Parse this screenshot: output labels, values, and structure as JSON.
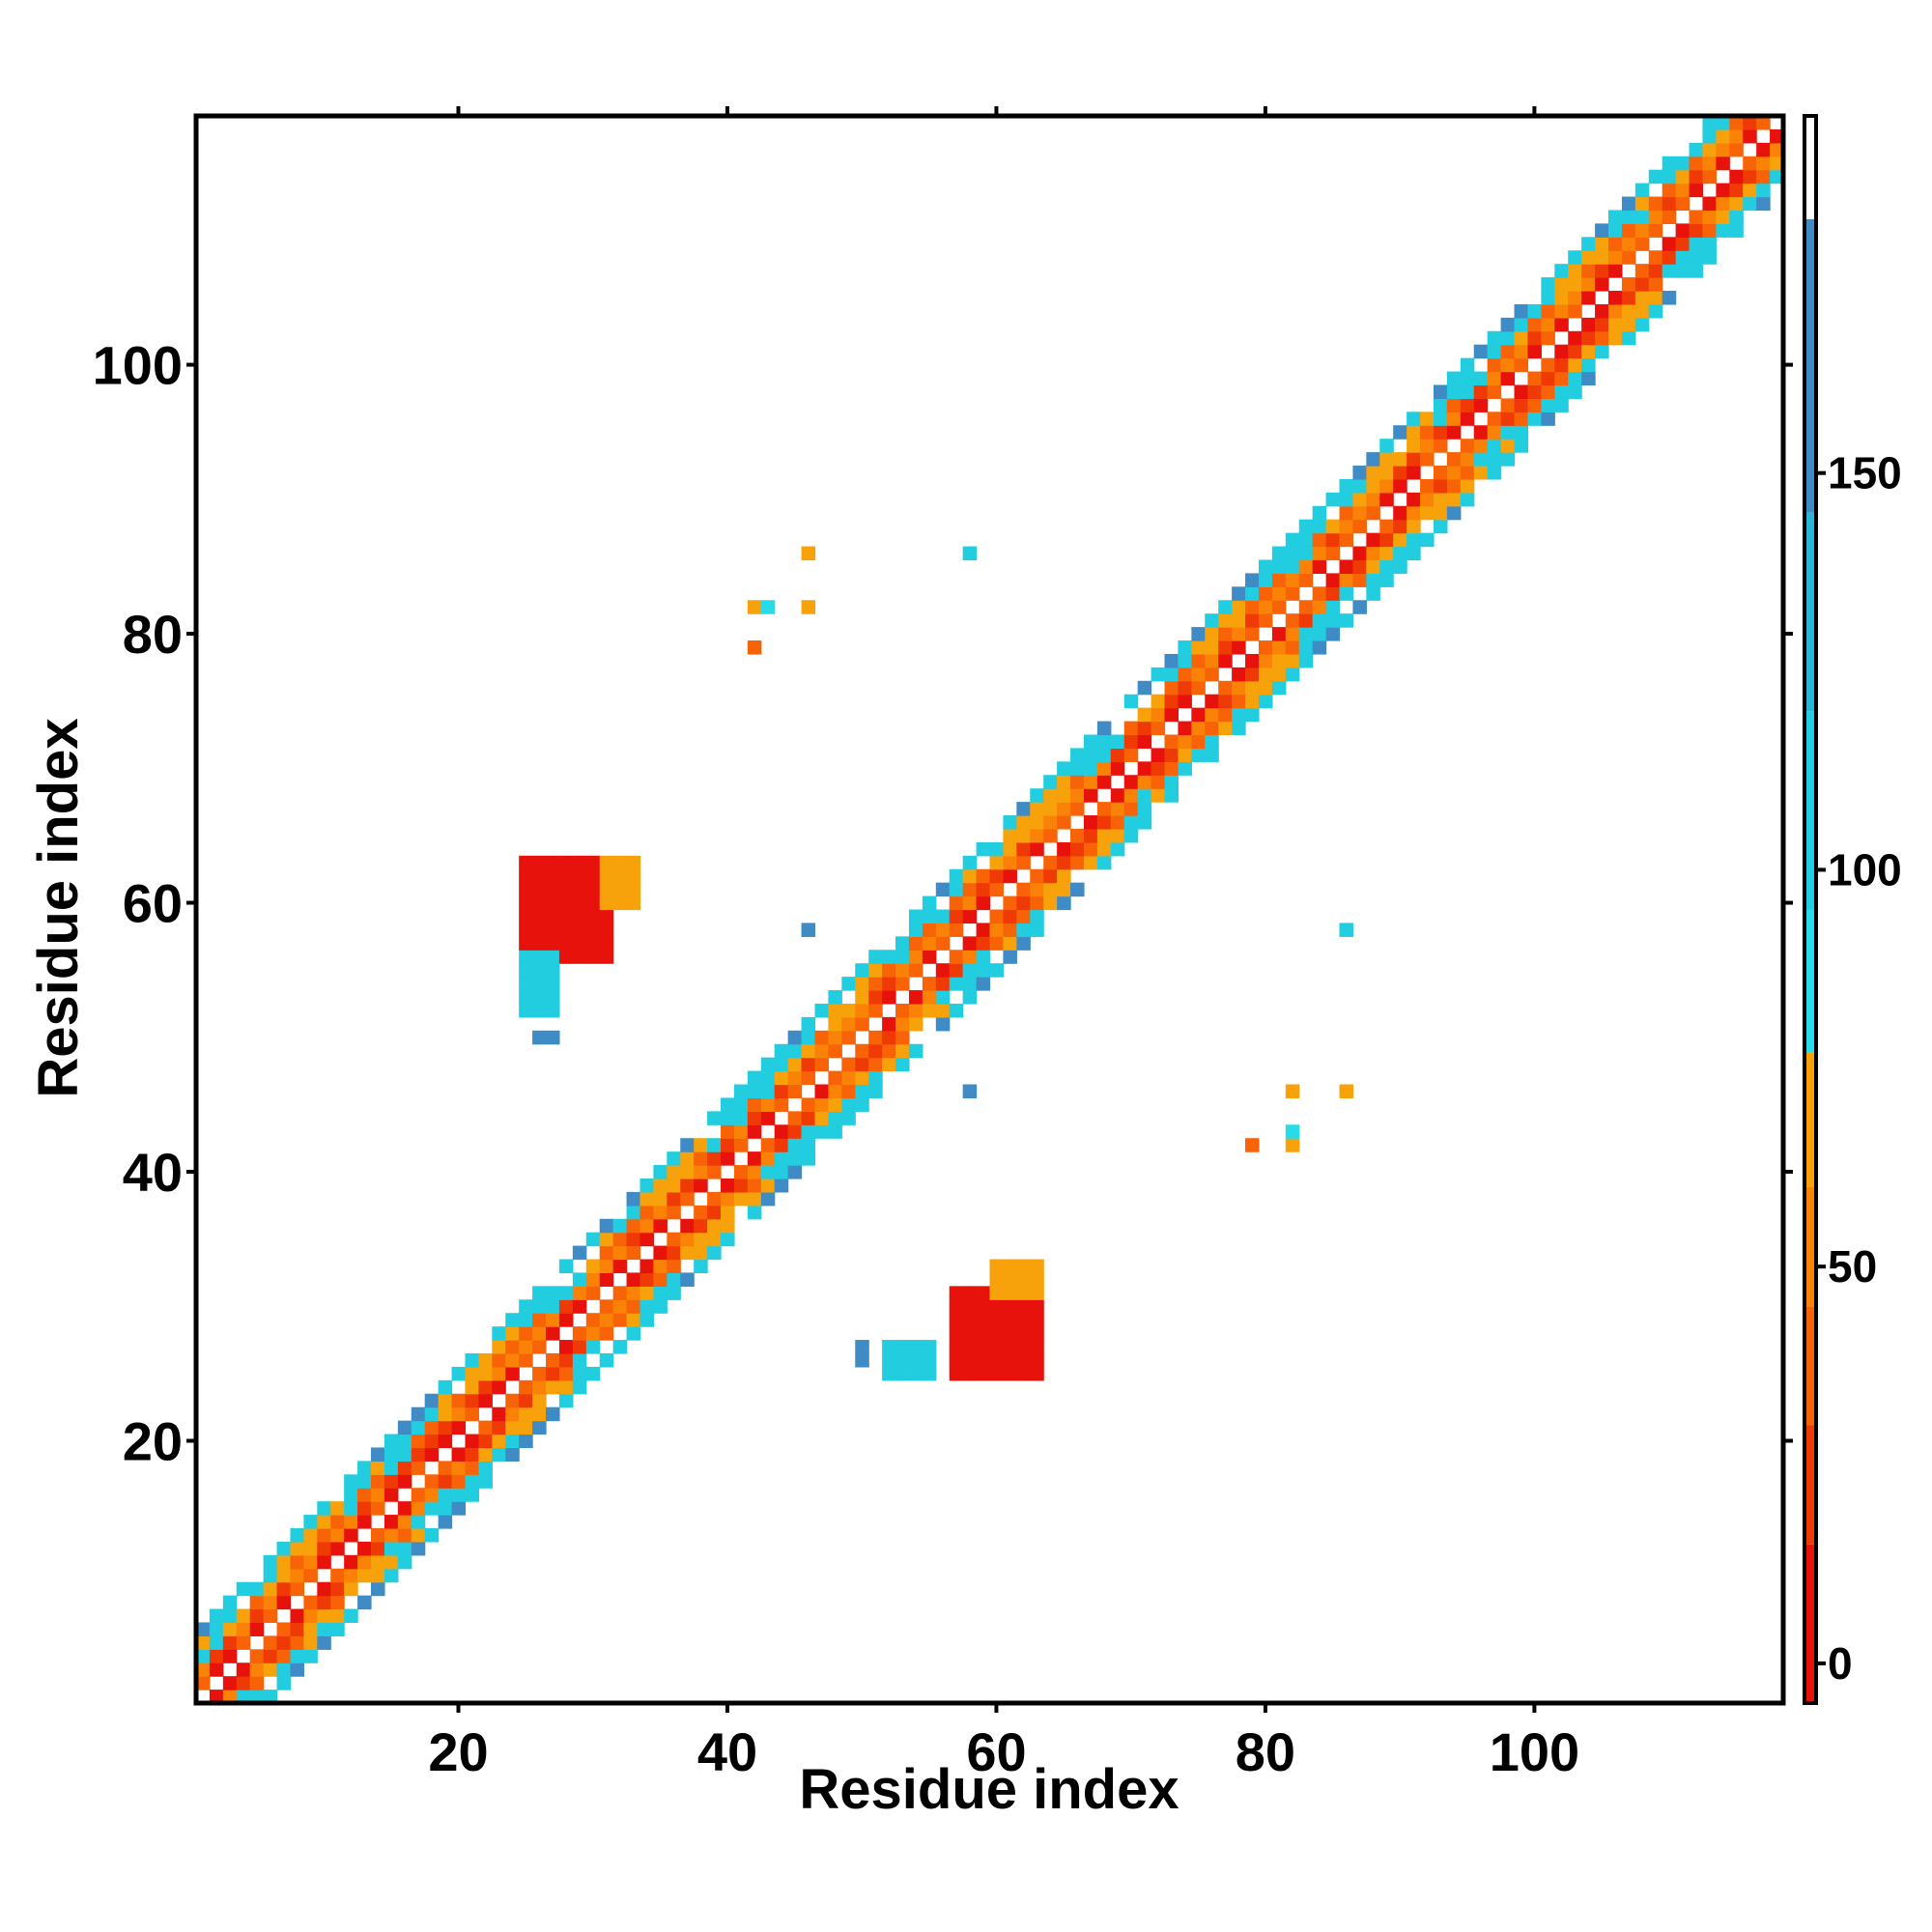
{
  "chart_data": {
    "type": "heatmap",
    "title": "",
    "xlabel": "Residue index",
    "ylabel": "Residue index",
    "xlim": [
      0.5,
      118.5
    ],
    "ylim": [
      0.5,
      118.5
    ],
    "x_ticks": [
      20,
      40,
      60,
      80,
      100
    ],
    "x_tick_labels": [
      "20",
      "40",
      "60",
      "80",
      "100"
    ],
    "y_ticks": [
      20,
      40,
      60,
      80,
      100
    ],
    "y_tick_labels": [
      "20",
      "40",
      "60",
      "80",
      "100"
    ],
    "colorbar": {
      "range": [
        -5,
        195
      ],
      "ticks": [
        0,
        50,
        100,
        150
      ],
      "tick_labels": [
        "0",
        "50",
        "100",
        "150"
      ],
      "segments": [
        {
          "from": -5,
          "to": 15,
          "color": "#e8120c"
        },
        {
          "from": 15,
          "to": 30,
          "color": "#f03a05"
        },
        {
          "from": 30,
          "to": 45,
          "color": "#f76306"
        },
        {
          "from": 45,
          "to": 60,
          "color": "#f98207"
        },
        {
          "from": 60,
          "to": 77,
          "color": "#f7a10b"
        },
        {
          "from": 77,
          "to": 95,
          "color": "#27dbe8"
        },
        {
          "from": 95,
          "to": 120,
          "color": "#22cde0"
        },
        {
          "from": 120,
          "to": 145,
          "color": "#27b6d8"
        },
        {
          "from": 145,
          "to": 182,
          "color": "#3e8bc6"
        },
        {
          "from": 182,
          "to": 195,
          "color": "#ffffff"
        }
      ]
    },
    "diagonal_band": {
      "half_width": 5,
      "description": "contact values near main diagonal"
    },
    "blocks": [
      {
        "x": [
          25,
          31
        ],
        "y": [
          56,
          63
        ],
        "value": 5
      },
      {
        "x": [
          31,
          33
        ],
        "y": [
          60,
          63
        ],
        "value": 70
      },
      {
        "x": [
          25,
          27
        ],
        "y": [
          52,
          56
        ],
        "value": 105
      },
      {
        "x": [
          26,
          27
        ],
        "y": [
          50,
          50
        ],
        "value": 160
      },
      {
        "x": [
          57,
          63
        ],
        "y": [
          25,
          31
        ],
        "value": 5
      },
      {
        "x": [
          60,
          63
        ],
        "y": [
          31,
          33
        ],
        "value": 70
      },
      {
        "x": [
          52,
          55
        ],
        "y": [
          25,
          27
        ],
        "value": 105
      },
      {
        "x": [
          50,
          50
        ],
        "y": [
          26,
          27
        ],
        "value": 160
      }
    ],
    "points": [
      {
        "x": 46,
        "y": 86,
        "value": 65
      },
      {
        "x": 58,
        "y": 86,
        "value": 105
      },
      {
        "x": 42,
        "y": 82,
        "value": 65
      },
      {
        "x": 43,
        "y": 82,
        "value": 90
      },
      {
        "x": 46,
        "y": 82,
        "value": 65
      },
      {
        "x": 42,
        "y": 79,
        "value": 35
      },
      {
        "x": 86,
        "y": 58,
        "value": 105
      },
      {
        "x": 82,
        "y": 46,
        "value": 65
      },
      {
        "x": 86,
        "y": 46,
        "value": 65
      },
      {
        "x": 79,
        "y": 42,
        "value": 35
      },
      {
        "x": 82,
        "y": 42,
        "value": 65
      },
      {
        "x": 82,
        "y": 43,
        "value": 90
      },
      {
        "x": 46,
        "y": 58,
        "value": 160
      },
      {
        "x": 58,
        "y": 46,
        "value": 160
      }
    ]
  }
}
